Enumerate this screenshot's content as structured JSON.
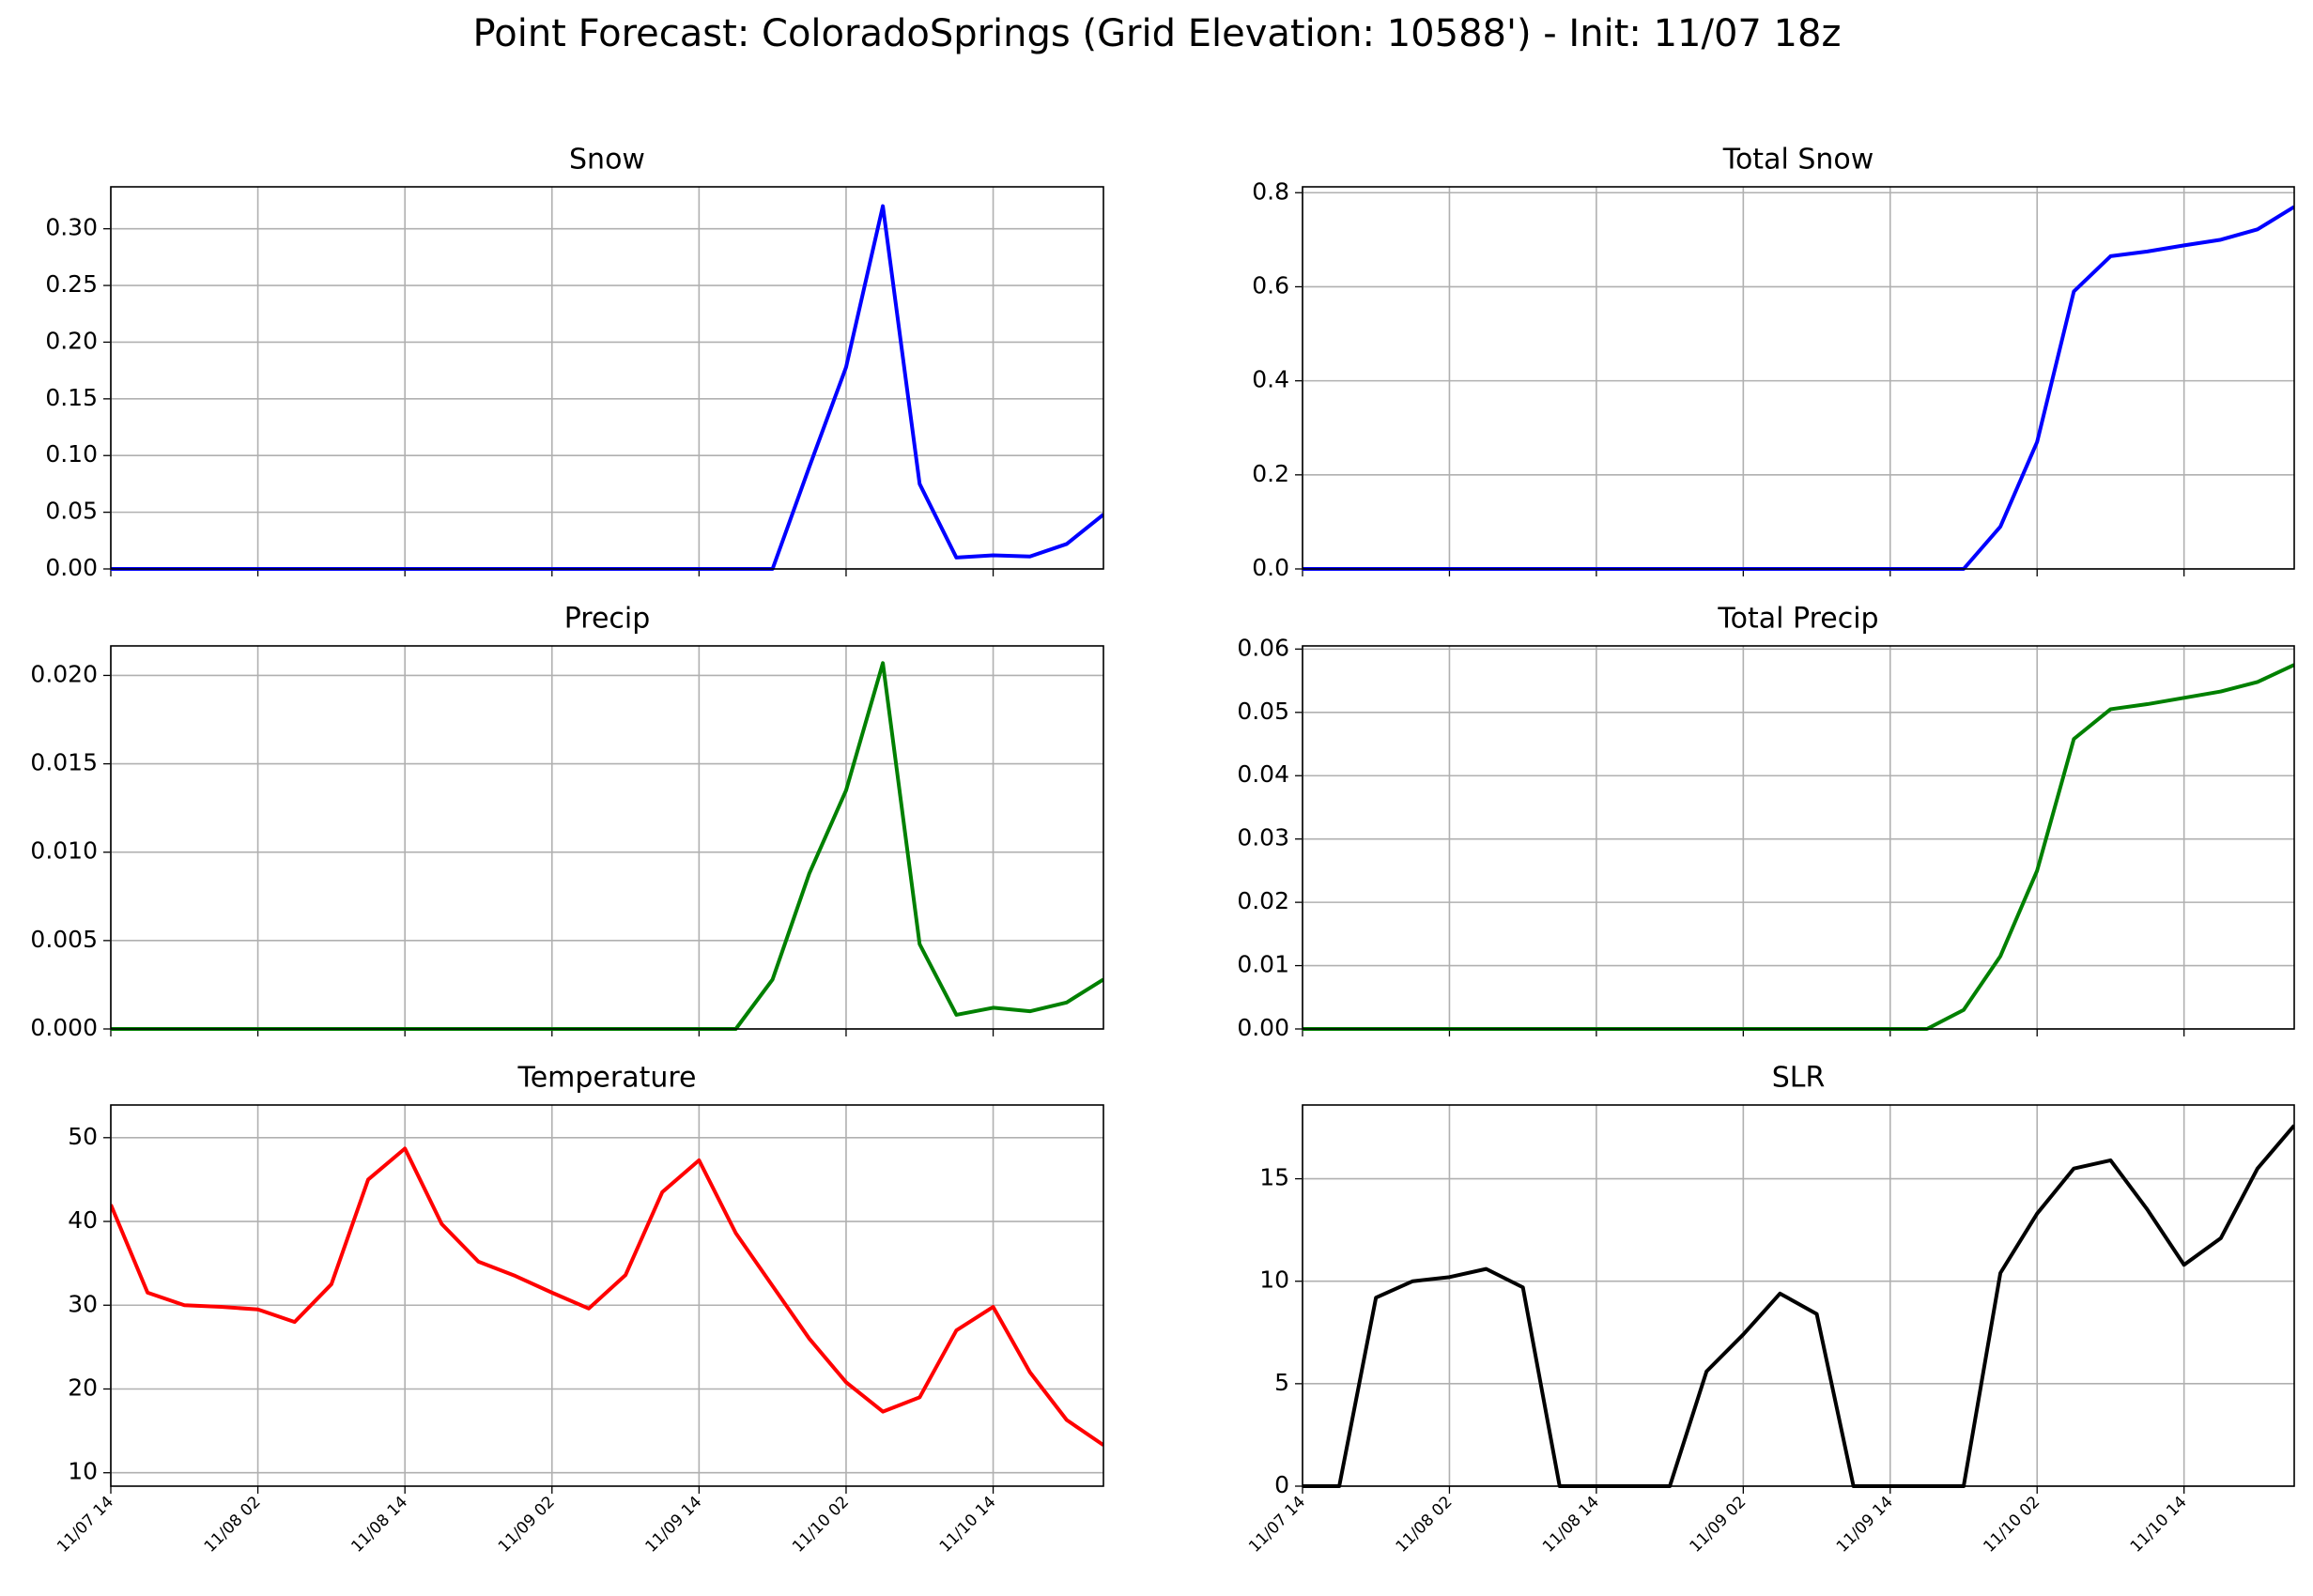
{
  "title": "Point Forecast: ColoradoSprings (Grid Elevation: 10588') - Init: 11/07 18z",
  "chart_data": [
    {
      "type": "line",
      "title": "Snow",
      "x": [
        "11/07 14",
        "11/07 17",
        "11/07 20",
        "11/07 23",
        "11/08 02",
        "11/08 05",
        "11/08 08",
        "11/08 11",
        "11/08 14",
        "11/08 17",
        "11/08 20",
        "11/08 23",
        "11/09 02",
        "11/09 05",
        "11/09 08",
        "11/09 11",
        "11/09 14",
        "11/09 17",
        "11/09 20",
        "11/09 23",
        "11/10 02",
        "11/10 05",
        "11/10 08",
        "11/10 11",
        "11/10 14",
        "11/10 17",
        "11/10 20",
        "11/10 23"
      ],
      "series": [
        {
          "color": "#0000ff",
          "values": [
            0,
            0,
            0,
            0,
            0,
            0,
            0,
            0,
            0,
            0,
            0,
            0,
            0,
            0,
            0,
            0,
            0,
            0,
            0,
            0.09,
            0.178,
            0.32,
            0.075,
            0.01,
            0.012,
            0.011,
            0.022,
            0.048
          ]
        }
      ],
      "xlim": [
        "11/07 14",
        "11/10 23"
      ],
      "xticks": [
        "11/07 14",
        "11/08 02",
        "11/08 14",
        "11/09 02",
        "11/09 14",
        "11/10 02",
        "11/10 14"
      ],
      "ylim": [
        0,
        0.337
      ],
      "yticks": [
        {
          "value": 0,
          "label": "0.00"
        },
        0.05,
        {
          "value": 0.1,
          "label": "0.10"
        },
        0.15,
        {
          "value": 0.2,
          "label": "0.20"
        },
        0.25,
        {
          "value": 0.3,
          "label": "0.30"
        }
      ],
      "grid": true
    },
    {
      "type": "line",
      "title": "Total Snow",
      "x": [
        "11/07 14",
        "11/07 17",
        "11/07 20",
        "11/07 23",
        "11/08 02",
        "11/08 05",
        "11/08 08",
        "11/08 11",
        "11/08 14",
        "11/08 17",
        "11/08 20",
        "11/08 23",
        "11/09 02",
        "11/09 05",
        "11/09 08",
        "11/09 11",
        "11/09 14",
        "11/09 17",
        "11/09 20",
        "11/09 23",
        "11/10 02",
        "11/10 05",
        "11/10 08",
        "11/10 11",
        "11/10 14",
        "11/10 17",
        "11/10 20",
        "11/10 23"
      ],
      "series": [
        {
          "color": "#0000ff",
          "values": [
            0,
            0,
            0,
            0,
            0,
            0,
            0,
            0,
            0,
            0,
            0,
            0,
            0,
            0,
            0,
            0,
            0,
            0,
            0,
            0.09,
            0.27,
            0.59,
            0.665,
            0.675,
            0.688,
            0.7,
            0.722,
            0.77
          ]
        }
      ],
      "xlim": [
        "11/07 14",
        "11/10 23"
      ],
      "xticks": [
        "11/07 14",
        "11/08 02",
        "11/08 14",
        "11/09 02",
        "11/09 14",
        "11/10 02",
        "11/10 14"
      ],
      "ylim": [
        0,
        0.8125
      ],
      "yticks": [
        {
          "value": 0,
          "label": "0.0"
        },
        0.2,
        0.4,
        0.6,
        0.8
      ],
      "grid": true
    },
    {
      "type": "line",
      "title": "Precip",
      "x": [
        "11/07 14",
        "11/07 17",
        "11/07 20",
        "11/07 23",
        "11/08 02",
        "11/08 05",
        "11/08 08",
        "11/08 11",
        "11/08 14",
        "11/08 17",
        "11/08 20",
        "11/08 23",
        "11/09 02",
        "11/09 05",
        "11/09 08",
        "11/09 11",
        "11/09 14",
        "11/09 17",
        "11/09 20",
        "11/09 23",
        "11/10 02",
        "11/10 05",
        "11/10 08",
        "11/10 11",
        "11/10 14",
        "11/10 17",
        "11/10 20",
        "11/10 23"
      ],
      "series": [
        {
          "color": "#008000",
          "values": [
            0,
            0,
            0,
            0,
            0,
            0,
            0,
            0,
            0,
            0,
            0,
            0,
            0,
            0,
            0,
            0,
            0,
            0,
            0.0028,
            0.0088,
            0.0135,
            0.0207,
            0.0048,
            0.0008,
            0.0012,
            0.001,
            0.0015,
            0.0028
          ]
        }
      ],
      "xlim": [
        "11/07 14",
        "11/10 23"
      ],
      "xticks": [
        "11/07 14",
        "11/08 02",
        "11/08 14",
        "11/09 02",
        "11/09 14",
        "11/10 02",
        "11/10 14"
      ],
      "ylim": [
        0,
        0.02167
      ],
      "yticks": [
        {
          "value": 0,
          "label": "0.000"
        },
        0.005,
        {
          "value": 0.01,
          "label": "0.010"
        },
        0.015,
        {
          "value": 0.02,
          "label": "0.020"
        }
      ],
      "grid": true
    },
    {
      "type": "line",
      "title": "Total Precip",
      "x": [
        "11/07 14",
        "11/07 17",
        "11/07 20",
        "11/07 23",
        "11/08 02",
        "11/08 05",
        "11/08 08",
        "11/08 11",
        "11/08 14",
        "11/08 17",
        "11/08 20",
        "11/08 23",
        "11/09 02",
        "11/09 05",
        "11/09 08",
        "11/09 11",
        "11/09 14",
        "11/09 17",
        "11/09 20",
        "11/09 23",
        "11/10 02",
        "11/10 05",
        "11/10 08",
        "11/10 11",
        "11/10 14",
        "11/10 17",
        "11/10 20",
        "11/10 23"
      ],
      "series": [
        {
          "color": "#008000",
          "values": [
            0,
            0,
            0,
            0,
            0,
            0,
            0,
            0,
            0,
            0,
            0,
            0,
            0,
            0,
            0,
            0,
            0,
            0,
            0.003,
            0.0115,
            0.025,
            0.0458,
            0.0505,
            0.0513,
            0.0523,
            0.0533,
            0.0548,
            0.0575
          ]
        }
      ],
      "xlim": [
        "11/07 14",
        "11/10 23"
      ],
      "xticks": [
        "11/07 14",
        "11/08 02",
        "11/08 14",
        "11/09 02",
        "11/09 14",
        "11/10 02",
        "11/10 14"
      ],
      "ylim": [
        0,
        0.0605
      ],
      "yticks": [
        {
          "value": 0,
          "label": "0.00"
        },
        0.01,
        0.02,
        0.03,
        0.04,
        0.05,
        0.06
      ],
      "grid": true
    },
    {
      "type": "line",
      "title": "Temperature",
      "x": [
        "11/07 14",
        "11/07 17",
        "11/07 20",
        "11/07 23",
        "11/08 02",
        "11/08 05",
        "11/08 08",
        "11/08 11",
        "11/08 14",
        "11/08 17",
        "11/08 20",
        "11/08 23",
        "11/09 02",
        "11/09 05",
        "11/09 08",
        "11/09 11",
        "11/09 14",
        "11/09 17",
        "11/09 20",
        "11/09 23",
        "11/10 02",
        "11/10 05",
        "11/10 08",
        "11/10 11",
        "11/10 14",
        "11/10 17",
        "11/10 20",
        "11/10 23"
      ],
      "series": [
        {
          "color": "#ff0000",
          "values": [
            42,
            31.5,
            30,
            29.8,
            29.5,
            28,
            32.5,
            45,
            48.7,
            39.7,
            35.2,
            33.5,
            31.5,
            29.6,
            33.6,
            43.5,
            47.3,
            38.6,
            32.3,
            26,
            20.8,
            17.3,
            19,
            27,
            29.8,
            22,
            16.3,
            13.3
          ]
        }
      ],
      "xlim": [
        "11/07 14",
        "11/10 23"
      ],
      "xticks": [
        "11/07 14",
        "11/08 02",
        "11/08 14",
        "11/09 02",
        "11/09 14",
        "11/10 02",
        "11/10 14"
      ],
      "ylim": [
        8.4,
        53.9
      ],
      "yticks": [
        10,
        20,
        30,
        40,
        50
      ],
      "grid": true
    },
    {
      "type": "line",
      "title": "SLR",
      "x": [
        "11/07 14",
        "11/07 17",
        "11/07 20",
        "11/07 23",
        "11/08 02",
        "11/08 05",
        "11/08 08",
        "11/08 11",
        "11/08 14",
        "11/08 17",
        "11/08 20",
        "11/08 23",
        "11/09 02",
        "11/09 05",
        "11/09 08",
        "11/09 11",
        "11/09 14",
        "11/09 17",
        "11/09 20",
        "11/09 23",
        "11/10 02",
        "11/10 05",
        "11/10 08",
        "11/10 11",
        "11/10 14",
        "11/10 17",
        "11/10 20",
        "11/10 23"
      ],
      "series": [
        {
          "color": "#000000",
          "values": [
            0,
            0,
            9.2,
            10,
            10.2,
            10.6,
            9.7,
            0,
            0,
            0,
            0,
            5.6,
            7.4,
            9.4,
            8.4,
            0,
            0,
            0,
            0,
            10.4,
            13.3,
            15.5,
            15.9,
            13.5,
            10.8,
            12.1,
            15.5,
            17.6
          ]
        }
      ],
      "xlim": [
        "11/07 14",
        "11/10 23"
      ],
      "xticks": [
        "11/07 14",
        "11/08 02",
        "11/08 14",
        "11/09 02",
        "11/09 14",
        "11/10 02",
        "11/10 14"
      ],
      "ylim": [
        0,
        18.6
      ],
      "yticks": [
        0,
        5,
        10,
        15
      ],
      "grid": true
    }
  ]
}
